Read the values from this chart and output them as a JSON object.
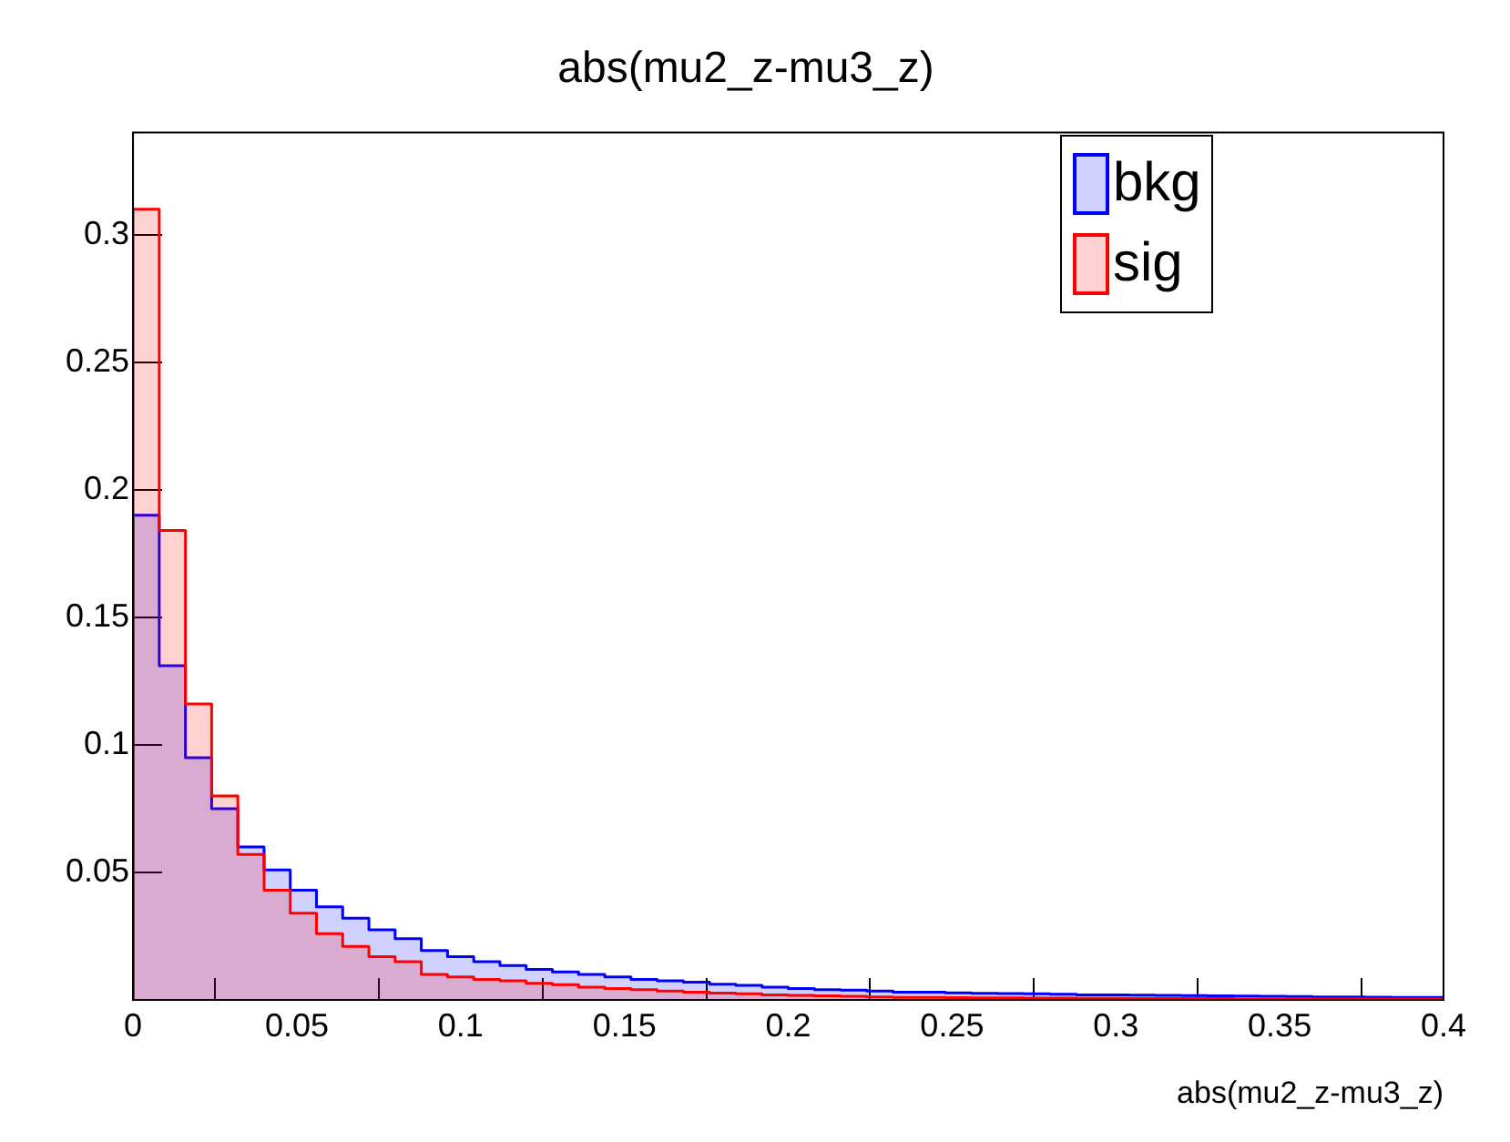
{
  "chart_data": {
    "type": "histogram",
    "title": "abs(mu2_z-mu3_z)",
    "xlabel": "abs(mu2_z-mu3_z)",
    "bins": [
      0,
      0.008,
      0.016,
      0.024,
      0.032,
      0.04,
      0.048,
      0.056,
      0.064,
      0.072,
      0.08,
      0.088,
      0.096,
      0.104,
      0.112,
      0.12,
      0.128,
      0.136,
      0.144,
      0.152,
      0.16,
      0.168,
      0.176,
      0.184,
      0.192,
      0.2,
      0.208,
      0.216,
      0.224,
      0.232,
      0.24,
      0.248,
      0.256,
      0.264,
      0.272,
      0.28,
      0.288,
      0.296,
      0.304,
      0.312,
      0.32,
      0.328,
      0.336,
      0.344,
      0.352,
      0.36,
      0.368,
      0.376,
      0.384,
      0.392,
      0.4
    ],
    "series": [
      {
        "name": "bkg",
        "color": "#0000ff",
        "values": [
          0.19,
          0.131,
          0.095,
          0.075,
          0.06,
          0.051,
          0.043,
          0.0365,
          0.032,
          0.0275,
          0.024,
          0.0194,
          0.017,
          0.015,
          0.0135,
          0.012,
          0.011,
          0.01,
          0.009,
          0.008,
          0.0075,
          0.007,
          0.0062,
          0.0057,
          0.005,
          0.0045,
          0.004,
          0.0038,
          0.0035,
          0.003,
          0.003,
          0.0028,
          0.0026,
          0.0025,
          0.0024,
          0.0022,
          0.002,
          0.002,
          0.0019,
          0.0018,
          0.0017,
          0.0016,
          0.0015,
          0.0014,
          0.0013,
          0.0012,
          0.0012,
          0.0011,
          0.001,
          0.001
        ]
      },
      {
        "name": "sig",
        "color": "#ff0000",
        "values": [
          0.31,
          0.184,
          0.116,
          0.08,
          0.057,
          0.043,
          0.034,
          0.026,
          0.021,
          0.017,
          0.015,
          0.01,
          0.009,
          0.008,
          0.0075,
          0.0065,
          0.006,
          0.005,
          0.0045,
          0.004,
          0.0035,
          0.003,
          0.0027,
          0.0024,
          0.002,
          0.0018,
          0.0016,
          0.0014,
          0.0012,
          0.001,
          0.001,
          0.0009,
          0.0008,
          0.0008,
          0.0007,
          0.0007,
          0.0006,
          0.0006,
          0.0005,
          0.0005,
          0.0005,
          0.0005,
          0.0004,
          0.0004,
          0.0004,
          0.0004,
          0.0004,
          0.0004,
          0.0004,
          0.0004
        ]
      }
    ],
    "xlim": [
      0,
      0.4
    ],
    "xticks": [
      0,
      0.05,
      0.1,
      0.15,
      0.2,
      0.25,
      0.3,
      0.35,
      0.4
    ],
    "ylim": [
      0,
      0.34
    ],
    "yticks": [
      0.05,
      0.1,
      0.15,
      0.2,
      0.25,
      0.3
    ],
    "grid": false,
    "legend": "top right"
  }
}
